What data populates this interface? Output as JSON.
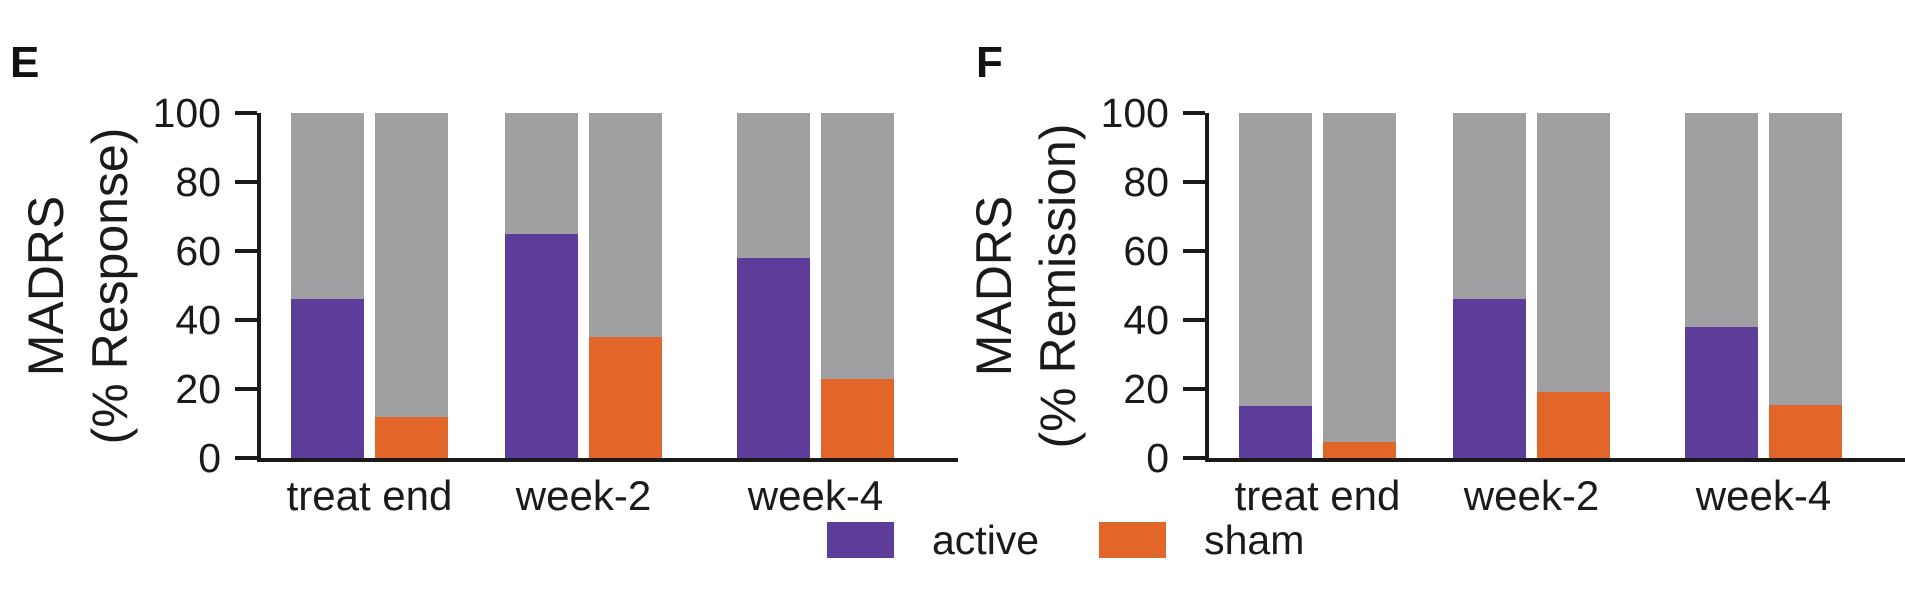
{
  "figure": {
    "background": "#ffffff",
    "text_color": "#1a1a1a"
  },
  "colors": {
    "active": "#5e3c99",
    "sham": "#e2662a",
    "remainder_gray": "#a0a0a3",
    "axis": "#1a1a1a"
  },
  "legend": {
    "position": "bottom-center",
    "items": [
      {
        "label": "active",
        "color": "#5e3c99"
      },
      {
        "label": "sham",
        "color": "#e2662a"
      }
    ]
  },
  "chart_data": [
    {
      "type": "bar",
      "panel_label": "E",
      "ylabel": "MADRS (% Response)",
      "ylabel_lines": [
        "MADRS",
        "(% Response)"
      ],
      "xlabel": "",
      "categories": [
        "treat end",
        "week-2",
        "week-4"
      ],
      "series": [
        {
          "name": "active",
          "color": "#5e3c99",
          "values": [
            46,
            65,
            58
          ]
        },
        {
          "name": "sham",
          "color": "#e2662a",
          "values": [
            12,
            35,
            23
          ]
        }
      ],
      "remainder_fill_to": 100,
      "remainder_color": "#a0a0a3",
      "ylim": [
        0,
        100
      ],
      "yticks": [
        0,
        20,
        40,
        60,
        80,
        100
      ],
      "grid": false,
      "legend_position": "bottom-center"
    },
    {
      "type": "bar",
      "panel_label": "F",
      "ylabel": "MADRS (% Remission)",
      "ylabel_lines": [
        "MADRS",
        "(% Remission)"
      ],
      "xlabel": "",
      "categories": [
        "treat end",
        "week-2",
        "week-4"
      ],
      "series": [
        {
          "name": "active",
          "color": "#5e3c99",
          "values": [
            15,
            46,
            38
          ]
        },
        {
          "name": "sham",
          "color": "#e2662a",
          "values": [
            4.5,
            19,
            15.5
          ]
        }
      ],
      "remainder_fill_to": 100,
      "remainder_color": "#a0a0a3",
      "ylim": [
        0,
        100
      ],
      "yticks": [
        0,
        20,
        40,
        60,
        80,
        100
      ],
      "grid": false,
      "legend_position": "bottom-center"
    }
  ]
}
